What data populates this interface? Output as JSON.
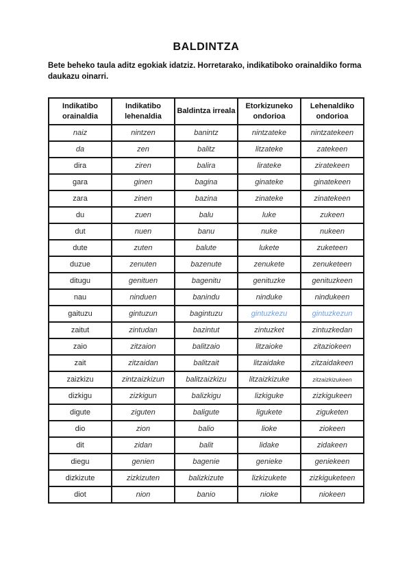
{
  "title": "BALDINTZA",
  "instructions": "Bete beheko taula aditz egokiak idatziz. Horretarako, indikatiboko orainaldiko forma daukazu oinarri.",
  "colors": {
    "answer_blue": "#6d9eeb",
    "table_border": "#161616"
  },
  "table": {
    "headers": [
      "Indikatibo orainaldia",
      "Indikatibo lehenaldia",
      "Baldintza irreala",
      "Etorkizuneko ondorioa",
      "Lehenaldiko ondorioa"
    ],
    "rows": [
      [
        "naiz",
        "nintzen",
        "banintz",
        "nintzateke",
        "nintzatekeen"
      ],
      [
        "da",
        "zen",
        "balitz",
        "litzateke",
        "zatekeen"
      ],
      [
        "dira",
        "ziren",
        "balira",
        "lirateke",
        "ziratekeen"
      ],
      [
        "gara",
        "ginen",
        "bagina",
        "ginateke",
        "ginatekeen"
      ],
      [
        "zara",
        "zinen",
        "bazina",
        "zinateke",
        "zinatekeen"
      ],
      [
        "du",
        "zuen",
        "balu",
        "luke",
        "zukeen"
      ],
      [
        "dut",
        "nuen",
        "banu",
        "nuke",
        "nukeen"
      ],
      [
        "dute",
        "zuten",
        "balute",
        "lukete",
        "zuketeen"
      ],
      [
        "duzue",
        "zenuten",
        "bazenute",
        "zenukete",
        "zenuketeen"
      ],
      [
        "ditugu",
        "genituen",
        "bagenitu",
        "genituzke",
        "genituzkeen"
      ],
      [
        "nau",
        "ninduen",
        "banindu",
        "ninduke",
        "nindukeen"
      ],
      [
        "gaituzu",
        "gintuzun",
        "bagintuzu",
        "gintuzkezu",
        "gintuzkezun"
      ],
      [
        "zaitut",
        "zintudan",
        "bazintut",
        "zintuzket",
        "zintuzkedan"
      ],
      [
        "zaio",
        "zitzaion",
        "balitzaio",
        "litzaioke",
        "zitaziokeen"
      ],
      [
        "zait",
        "zitzaidan",
        "balitzait",
        "litzaidake",
        "zitzaidakeen"
      ],
      [
        "zaizkizu",
        "zintzaizkizun",
        "balitzaizkizu",
        "litzaizkizuke",
        "zitzaizkizukeen"
      ],
      [
        "dizkigu",
        "zizkigun",
        "balizkigu",
        "lizkiguke",
        "zizkigukeen"
      ],
      [
        "digute",
        "ziguten",
        "baligute",
        "ligukete",
        "ziguketen"
      ],
      [
        "dio",
        "zion",
        "balio",
        "lioke",
        "ziokeen"
      ],
      [
        "dit",
        "zidan",
        "balit",
        "lidake",
        "zidakeen"
      ],
      [
        "diegu",
        "genien",
        "bagenie",
        "genieke",
        "geniekeen"
      ],
      [
        "dizkizute",
        "zizkizuten",
        "balizkizute",
        "lizkizukete",
        "zizkiguketeen"
      ],
      [
        "diot",
        "nion",
        "banio",
        "nioke",
        "niokeen"
      ]
    ],
    "italic_first_cell_rows": [
      0,
      1
    ],
    "blue_cells": [
      [
        11,
        3
      ],
      [
        11,
        4
      ]
    ],
    "small_cells": [
      [
        15,
        4
      ]
    ]
  }
}
